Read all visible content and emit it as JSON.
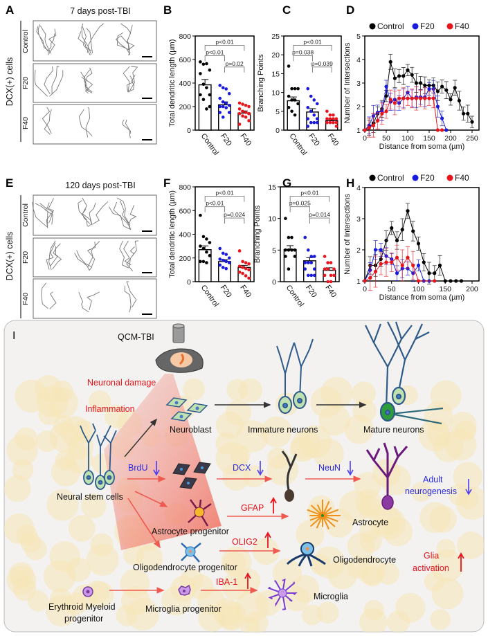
{
  "panels": {
    "A": "A",
    "B": "B",
    "C": "C",
    "D": "D",
    "E": "E",
    "F": "F",
    "G": "G",
    "H": "H",
    "I": "I"
  },
  "panel_a": {
    "title": "7 days post-TBI",
    "ylabel": "DCX(+) cells",
    "rows": [
      "Control",
      "F20",
      "F40"
    ]
  },
  "panel_e": {
    "title": "120 days post-TBI",
    "ylabel": "DCX(+) cells",
    "rows": [
      "Control",
      "F20",
      "F40"
    ]
  },
  "colors": {
    "Control": "#000000",
    "F20": "#1a1adc",
    "F40": "#e8141b",
    "arrow_red": "#ef5a50",
    "arrow_blue": "#4a3cf0",
    "panel_bg": "#f3f2f0",
    "cell_bg": "#f5e6b8"
  },
  "chart_data": [
    {
      "id": "B",
      "type": "bar",
      "ylabel": "Total dendritic length (µm)",
      "categories": [
        "Control",
        "F20",
        "F40"
      ],
      "ylim": [
        0,
        800
      ],
      "yticks": [
        0,
        200,
        400,
        600,
        800
      ],
      "values": [
        385,
        215,
        145
      ],
      "sem": [
        45,
        25,
        18
      ],
      "points": [
        [
          580,
          560,
          565,
          510,
          480,
          390,
          360,
          300,
          300,
          260,
          180,
          200
        ],
        [
          380,
          360,
          350,
          310,
          270,
          240,
          230,
          210,
          200,
          200,
          190,
          150,
          150,
          110
        ],
        [
          230,
          220,
          210,
          200,
          180,
          160,
          150,
          140,
          140,
          120,
          110,
          80,
          50
        ]
      ],
      "comparisons": [
        {
          "a": 0,
          "b": 2,
          "label": "p<0.01"
        },
        {
          "a": 0,
          "b": 1,
          "label": "p<0.01"
        },
        {
          "a": 1,
          "b": 2,
          "label": "p=0.02"
        }
      ]
    },
    {
      "id": "C",
      "type": "bar",
      "ylabel": "Branching Points",
      "categories": [
        "Control",
        "F20",
        "F40"
      ],
      "ylim": [
        0,
        25
      ],
      "yticks": [
        0,
        5,
        10,
        15,
        20,
        25
      ],
      "values": [
        7.8,
        4.8,
        2.5
      ],
      "sem": [
        1.0,
        0.9,
        0.4
      ],
      "points": [
        [
          17,
          11,
          11,
          11,
          9,
          8,
          8,
          7,
          6,
          5,
          4
        ],
        [
          11,
          9,
          8,
          7,
          6,
          5,
          4,
          3,
          3,
          2,
          2,
          2,
          1
        ],
        [
          5,
          4,
          4,
          3,
          3,
          3,
          3,
          2,
          2,
          2,
          2,
          1
        ]
      ],
      "comparisons": [
        {
          "a": 0,
          "b": 2,
          "label": "p<0.01"
        },
        {
          "a": 0,
          "b": 1,
          "label": "p=0.038"
        },
        {
          "a": 1,
          "b": 2,
          "label": "p=0.039"
        }
      ]
    },
    {
      "id": "D",
      "type": "line",
      "xlabel": "Distance from soma (µm)",
      "ylabel": "Number of Intersections",
      "xlim": [
        0,
        250
      ],
      "ylim": [
        1,
        5
      ],
      "xticks": [
        0,
        50,
        100,
        150,
        200,
        250
      ],
      "yticks": [
        1,
        2,
        3,
        4,
        5
      ],
      "legend": "top",
      "series": [
        {
          "name": "Control",
          "x": [
            0,
            10,
            20,
            30,
            40,
            50,
            60,
            70,
            80,
            90,
            100,
            110,
            120,
            130,
            140,
            150,
            160,
            170,
            180,
            190,
            200,
            210,
            220,
            230,
            240,
            250
          ],
          "y": [
            1,
            1.1,
            1.3,
            1.7,
            1.9,
            2.45,
            3.9,
            3.2,
            3.3,
            3.3,
            3.55,
            3.35,
            3.0,
            3.0,
            2.9,
            2.9,
            2.9,
            2.65,
            2.85,
            2.7,
            2.3,
            2.8,
            2.25,
            1.7,
            1.7,
            1.35
          ],
          "err": 0.4
        },
        {
          "name": "F20",
          "x": [
            0,
            10,
            20,
            30,
            40,
            50,
            60,
            70,
            80,
            90,
            100,
            110,
            120,
            130,
            140,
            150,
            160,
            170,
            180,
            190
          ],
          "y": [
            1,
            1.2,
            1.6,
            1.75,
            1.8,
            2.85,
            2.2,
            2.3,
            2.15,
            2.35,
            2.6,
            2.35,
            2.4,
            2.4,
            2.4,
            2.75,
            2.75,
            2.0,
            1.5,
            1.0
          ],
          "err": 0.45
        },
        {
          "name": "F40",
          "x": [
            0,
            10,
            20,
            30,
            40,
            50,
            60,
            70,
            80,
            90,
            100,
            110,
            120,
            130,
            140,
            150,
            160,
            170,
            180
          ],
          "y": [
            1,
            1.1,
            1.2,
            1.4,
            1.7,
            1.8,
            2.3,
            2.15,
            2.35,
            2.35,
            2.35,
            2.35,
            2.35,
            2.35,
            2.35,
            2.35,
            2.35,
            1.0,
            1.0
          ],
          "err": 0.5
        }
      ]
    },
    {
      "id": "F",
      "type": "bar",
      "ylabel": "Total dendritic length (µm)",
      "categories": [
        "Control",
        "F20",
        "F40"
      ],
      "ylim": [
        0,
        800
      ],
      "yticks": [
        0,
        200,
        400,
        600,
        800
      ],
      "values": [
        270,
        170,
        120
      ],
      "sem": [
        32,
        16,
        18
      ],
      "points": [
        [
          560,
          380,
          360,
          330,
          300,
          280,
          250,
          220,
          170,
          170,
          160
        ],
        [
          280,
          240,
          230,
          200,
          190,
          180,
          170,
          160,
          140,
          120,
          110
        ],
        [
          260,
          170,
          160,
          150,
          130,
          120,
          110,
          100,
          80,
          70,
          50,
          30
        ]
      ],
      "comparisons": [
        {
          "a": 0,
          "b": 2,
          "label": "p<0.01"
        },
        {
          "a": 0,
          "b": 1,
          "label": "p<0.01"
        },
        {
          "a": 1,
          "b": 2,
          "label": "p=0.024"
        }
      ]
    },
    {
      "id": "G",
      "type": "bar",
      "ylabel": "Branching Points",
      "categories": [
        "Control",
        "F20",
        "F40"
      ],
      "ylim": [
        0,
        15
      ],
      "yticks": [
        0,
        5,
        10,
        15
      ],
      "values": [
        5.1,
        3.3,
        1.8
      ],
      "sem": [
        0.6,
        0.5,
        0.4
      ],
      "points": [
        [
          10,
          7,
          7,
          5,
          5,
          5,
          5,
          4,
          4,
          2
        ],
        [
          7,
          5,
          4,
          4,
          3,
          3,
          3,
          2,
          2,
          1,
          1,
          1
        ],
        [
          4,
          3,
          3,
          2,
          2,
          2,
          1,
          1,
          1,
          0,
          0
        ]
      ],
      "comparisons": [
        {
          "a": 0,
          "b": 2,
          "label": "p<0.01"
        },
        {
          "a": 0,
          "b": 1,
          "label": "p=0.025"
        },
        {
          "a": 1,
          "b": 2,
          "label": "p=0.014"
        }
      ]
    },
    {
      "id": "H",
      "type": "line",
      "xlabel": "Distance from soma (µm)",
      "ylabel": "Number of Intersections",
      "xlim": [
        0,
        200
      ],
      "ylim": [
        1,
        4
      ],
      "xticks": [
        0,
        50,
        100,
        150,
        200
      ],
      "yticks": [
        1,
        2,
        3,
        4
      ],
      "legend": "top",
      "series": [
        {
          "name": "Control",
          "x": [
            0,
            10,
            20,
            30,
            40,
            50,
            60,
            70,
            80,
            90,
            100,
            110,
            120,
            130,
            140,
            150,
            160,
            170,
            180
          ],
          "y": [
            1,
            1.5,
            1.5,
            1.7,
            2.3,
            2.7,
            2.3,
            2.65,
            3.25,
            2.6,
            2.2,
            1.6,
            1.25,
            1.25,
            1.5,
            1,
            1,
            1,
            1
          ],
          "err": 0.35
        },
        {
          "name": "F20",
          "x": [
            0,
            10,
            20,
            30,
            40,
            50,
            60,
            70,
            80,
            90,
            100,
            110,
            120
          ],
          "y": [
            1,
            1.35,
            2.0,
            2.0,
            1.8,
            1.7,
            1.25,
            1.4,
            1.4,
            1.25,
            1.5,
            1.0,
            1.0
          ],
          "err": 0.3
        },
        {
          "name": "F40",
          "x": [
            0,
            10,
            20,
            30,
            40,
            50,
            60,
            70,
            80,
            90,
            100,
            130
          ],
          "y": [
            1,
            1.1,
            1.3,
            1.55,
            1.6,
            1.6,
            1.75,
            1.5,
            1.75,
            1.5,
            1.0,
            1.0
          ],
          "err": 0.5
        }
      ]
    }
  ],
  "diagram": {
    "qcm": "QCM-TBI",
    "neuronal_damage": "Neuronal damage",
    "inflammation": "Inflammation",
    "neuroblast": "Neuroblast",
    "immature": "Immature neurons",
    "mature": "Mature neurons",
    "nsc": "Neural stem cells",
    "brdu": "BrdU",
    "dcx": "DCX",
    "neun": "NeuN",
    "adult1": "Adult",
    "adult2": "neurogenesis",
    "gfap": "GFAP",
    "astro_prog": "Astrocyte progenitor",
    "astrocyte": "Astrocyte",
    "olig2": "OLIG2",
    "oligo_prog": "Oligodendrocyte progenitor",
    "oligo": "Oligodendrocyte",
    "glia1": "Glia",
    "glia2": "activation",
    "iba1": "IBA-1",
    "ery1": "Erythroid Myeloid",
    "ery2": "progenitor",
    "micro_prog": "Microglia progenitor",
    "microglia": "Microglia"
  }
}
